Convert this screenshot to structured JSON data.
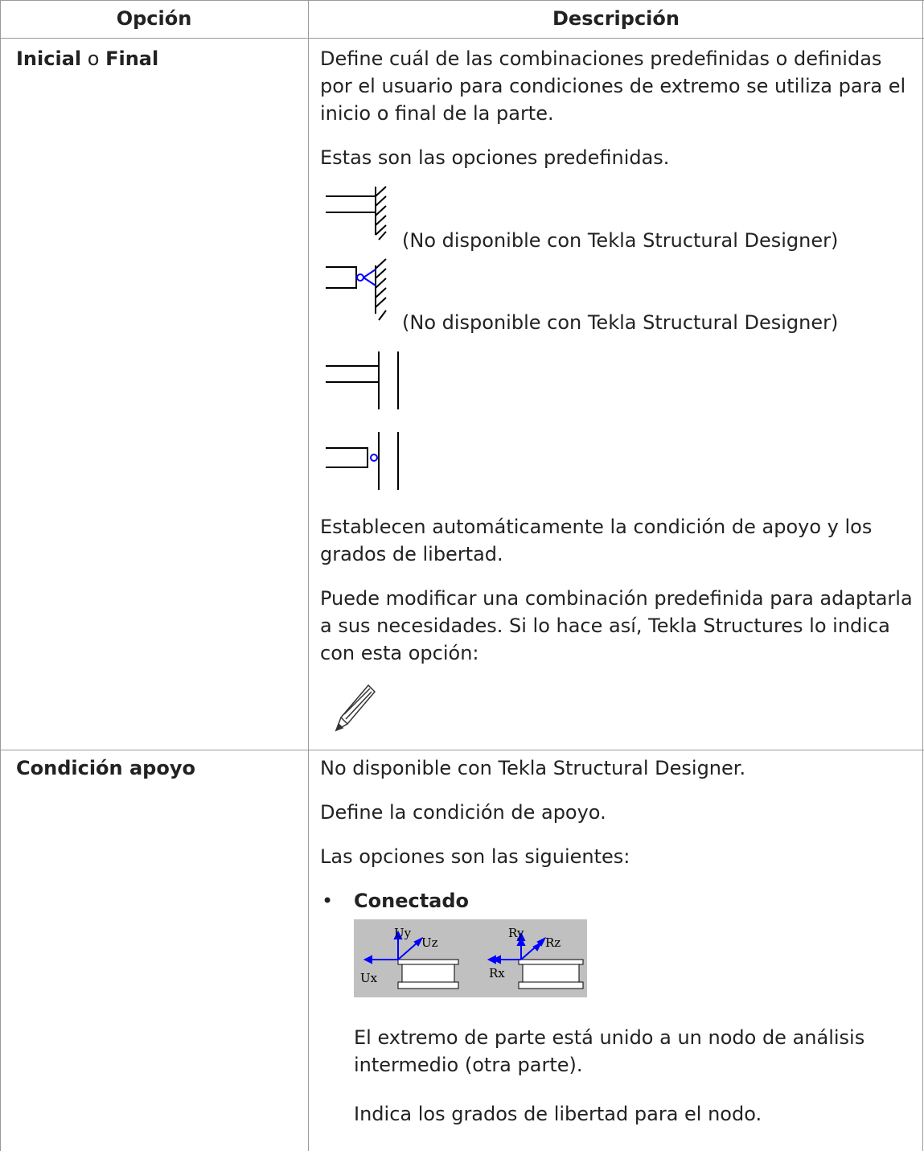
{
  "table": {
    "header": [
      "Opción",
      "Descripción"
    ],
    "rows": [
      {
        "option": [
          "Inicial",
          "o",
          "Final"
        ],
        "paragraphs": [
          "Define cuál de las combinaciones predefinidas o definidas por el usuario para condiciones de extremo se utiliza para el inicio o final de la parte.",
          "Estas son las opciones predefinidas."
        ],
        "icon_captions": [
          "(No disponible con Tekla Structural Designer)",
          "(No disponible con Tekla Structural Designer)"
        ],
        "paragraphs_after": [
          "Establecen automáticamente la condición de apoyo y los grados de libertad.",
          "Puede modificar una combinación predefinida para adaptarla a sus necesidades. Si lo hace así, Tekla Structures lo indica con esta opción:"
        ]
      },
      {
        "option": [
          "Condición apoyo"
        ],
        "paragraphs": [
          "No disponible con Tekla Structural Designer.",
          "Define la condición de apoyo.",
          "Las opciones son las siguientes:"
        ],
        "bullet": "Conectado",
        "figure_labels": [
          "Uy",
          "Uz",
          "Ux",
          "Ry",
          "Rz",
          "Rx"
        ],
        "bullet_paragraphs": [
          "El extremo de parte está unido a un nodo de análisis intermedio (otra parte).",
          "Indica los grados de libertad para el nodo."
        ]
      }
    ]
  }
}
